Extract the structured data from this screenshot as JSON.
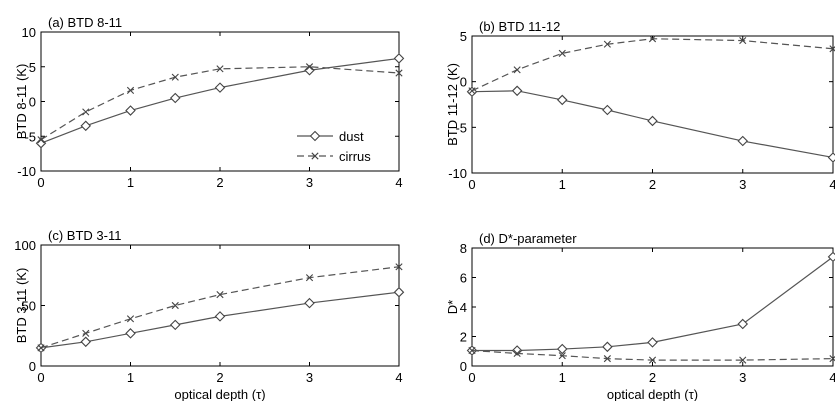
{
  "chart_data": [
    {
      "type": "line",
      "title": "(a) BTD 8-11",
      "xlabel": "",
      "ylabel": "BTD 8-11 (K)",
      "xlim": [
        0,
        4
      ],
      "ylim": [
        -10,
        10
      ],
      "xticks": [
        0,
        1,
        2,
        3,
        4
      ],
      "yticks": [
        -10,
        -5,
        0,
        5,
        10
      ],
      "legend": {
        "position": "bottom-right"
      },
      "series": [
        {
          "name": "dust",
          "marker": "diamond",
          "dash": "solid",
          "x": [
            0,
            0.5,
            1,
            1.5,
            2,
            3,
            4
          ],
          "y": [
            -6,
            -3.5,
            -1.3,
            0.5,
            2,
            4.5,
            6.2
          ]
        },
        {
          "name": "cirrus",
          "marker": "x",
          "dash": "dashed",
          "x": [
            0,
            0.5,
            1,
            1.5,
            2,
            3,
            4
          ],
          "y": [
            -5.5,
            -1.5,
            1.6,
            3.5,
            4.7,
            5,
            4.1
          ]
        }
      ]
    },
    {
      "type": "line",
      "title": "(b) BTD 11-12",
      "xlabel": "",
      "ylabel": "BTD 11-12 (K)",
      "xlim": [
        0,
        4
      ],
      "ylim": [
        -10,
        5
      ],
      "xticks": [
        0,
        1,
        2,
        3,
        4
      ],
      "yticks": [
        -10,
        -5,
        0,
        5
      ],
      "series": [
        {
          "name": "dust",
          "marker": "diamond",
          "dash": "solid",
          "x": [
            0,
            0.5,
            1,
            1.5,
            2,
            3,
            4
          ],
          "y": [
            -1.1,
            -1,
            -2,
            -3.1,
            -4.3,
            -6.5,
            -8.3
          ]
        },
        {
          "name": "cirrus",
          "marker": "x",
          "dash": "dashed",
          "x": [
            0,
            0.5,
            1,
            1.5,
            2,
            3,
            4
          ],
          "y": [
            -1,
            1.3,
            3.1,
            4.1,
            4.7,
            4.5,
            3.6
          ]
        }
      ]
    },
    {
      "type": "line",
      "title": "(c) BTD 3-11",
      "xlabel": "optical depth (τ)",
      "ylabel": "BTD 3-11 (K)",
      "xlim": [
        0,
        4
      ],
      "ylim": [
        0,
        100
      ],
      "xticks": [
        0,
        1,
        2,
        3,
        4
      ],
      "yticks": [
        0,
        50,
        100
      ],
      "series": [
        {
          "name": "dust",
          "marker": "diamond",
          "dash": "solid",
          "x": [
            0,
            0.5,
            1,
            1.5,
            2,
            3,
            4
          ],
          "y": [
            15,
            20,
            27,
            34,
            41,
            52,
            61
          ]
        },
        {
          "name": "cirrus",
          "marker": "x",
          "dash": "dashed",
          "x": [
            0,
            0.5,
            1,
            1.5,
            2,
            3,
            4
          ],
          "y": [
            15,
            27,
            39,
            50,
            59,
            73,
            82
          ]
        }
      ]
    },
    {
      "type": "line",
      "title": "(d) D*-parameter",
      "xlabel": "optical depth (τ)",
      "ylabel": "D*",
      "xlim": [
        0,
        4
      ],
      "ylim": [
        0,
        8
      ],
      "xticks": [
        0,
        1,
        2,
        3,
        4
      ],
      "yticks": [
        0,
        2,
        4,
        6,
        8
      ],
      "series": [
        {
          "name": "dust",
          "marker": "diamond",
          "dash": "solid",
          "x": [
            0,
            0.5,
            1,
            1.5,
            2,
            3,
            4
          ],
          "y": [
            1.05,
            1.05,
            1.15,
            1.3,
            1.6,
            2.85,
            7.4
          ]
        },
        {
          "name": "cirrus",
          "marker": "x",
          "dash": "dashed",
          "x": [
            0,
            0.5,
            1,
            1.5,
            2,
            3,
            4
          ],
          "y": [
            1.05,
            0.85,
            0.7,
            0.5,
            0.4,
            0.4,
            0.5
          ]
        }
      ]
    }
  ]
}
